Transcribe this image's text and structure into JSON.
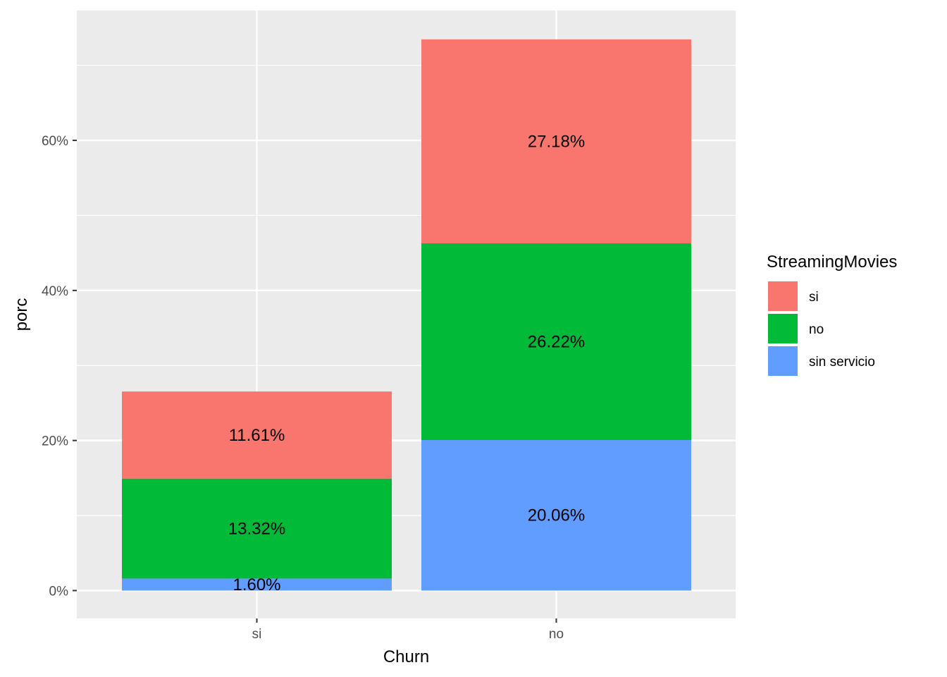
{
  "chart_data": {
    "type": "bar",
    "stacked": true,
    "xlabel": "Churn",
    "ylabel": "porc",
    "categories": [
      "si",
      "no"
    ],
    "ylim": [
      -3.72,
      77.3
    ],
    "y_ticks": [
      0,
      20,
      40,
      60
    ],
    "y_tick_labels": [
      "0%",
      "20%",
      "40%",
      "60%"
    ],
    "grid": true,
    "legend": {
      "title": "StreamingMovies",
      "position": "right"
    },
    "series": [
      {
        "name": "sin servicio",
        "color": "#619CFF",
        "values": [
          1.6,
          20.06
        ],
        "labels": [
          "1.60%",
          "20.06%"
        ]
      },
      {
        "name": "no",
        "color": "#00BA38",
        "values": [
          13.32,
          26.22
        ],
        "labels": [
          "13.32%",
          "26.22%"
        ]
      },
      {
        "name": "si",
        "color": "#F8766D",
        "values": [
          11.61,
          27.18
        ],
        "labels": [
          "11.61%",
          "27.18%"
        ]
      }
    ],
    "legend_order": [
      "si",
      "no",
      "sin servicio"
    ]
  }
}
